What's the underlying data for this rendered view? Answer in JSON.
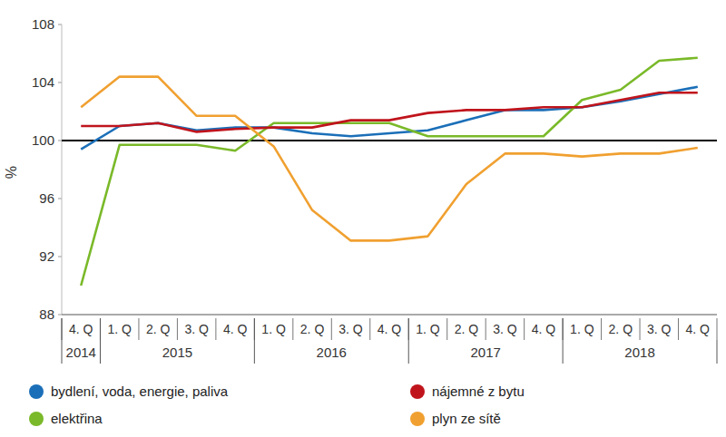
{
  "chart_data": {
    "type": "line",
    "y_label": "%",
    "categories": [
      "4. Q",
      "1. Q",
      "2. Q",
      "3. Q",
      "4. Q",
      "1. Q",
      "2. Q",
      "3. Q",
      "4. Q",
      "1. Q",
      "2. Q",
      "3. Q",
      "4. Q",
      "1. Q",
      "2. Q",
      "3. Q",
      "4. Q"
    ],
    "groups": [
      {
        "label": "2014",
        "categories": 1
      },
      {
        "label": "2015",
        "categories": 4
      },
      {
        "label": "2016",
        "categories": 4
      },
      {
        "label": "2017",
        "categories": 4
      },
      {
        "label": "2018",
        "categories": 4
      }
    ],
    "ylim": [
      88,
      108
    ],
    "yticks": [
      88,
      92,
      96,
      100,
      104,
      108
    ],
    "baseline": 100,
    "grid": false,
    "legend": "bottom",
    "series": [
      {
        "name": "bydlení, voda, energie, paliva",
        "color": "#1b6fb8",
        "values": [
          99.4,
          101.0,
          101.2,
          100.7,
          100.9,
          100.9,
          100.5,
          100.3,
          100.5,
          100.7,
          101.4,
          102.1,
          102.1,
          102.3,
          102.7,
          103.2,
          103.7
        ]
      },
      {
        "name": "elektřina",
        "color": "#7ab929",
        "values": [
          90.0,
          99.7,
          99.7,
          99.7,
          99.3,
          101.2,
          101.2,
          101.2,
          101.2,
          100.3,
          100.3,
          100.3,
          100.3,
          102.8,
          103.5,
          105.5,
          105.7
        ]
      },
      {
        "name": "nájemné z bytu",
        "color": "#c0141c",
        "values": [
          101.0,
          101.0,
          101.2,
          100.6,
          100.8,
          100.9,
          100.9,
          101.4,
          101.4,
          101.9,
          102.1,
          102.1,
          102.3,
          102.3,
          102.8,
          103.3,
          103.3
        ]
      },
      {
        "name": "plyn ze sítě",
        "color": "#f0a030",
        "values": [
          102.3,
          104.4,
          104.4,
          101.7,
          101.7,
          99.6,
          95.2,
          93.1,
          93.1,
          93.4,
          97.0,
          99.1,
          99.1,
          98.9,
          99.1,
          99.1,
          99.5
        ]
      }
    ]
  }
}
